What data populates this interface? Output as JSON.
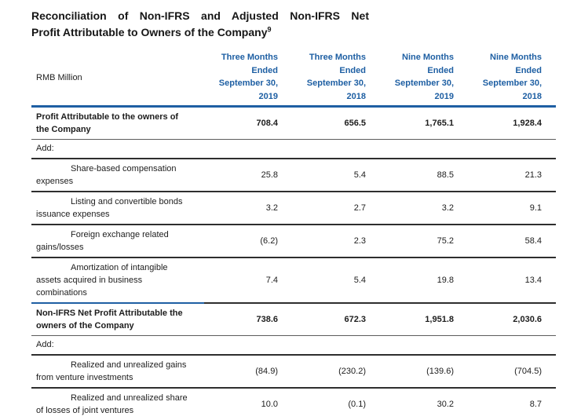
{
  "title": {
    "line1": "Reconciliation of Non-IFRS and Adjusted Non-IFRS Net",
    "line2": "Profit Attributable to Owners of the Company",
    "superscript": "9"
  },
  "table": {
    "unit_label": "RMB Million",
    "column_headers": [
      "Three Months\nEnded\nSeptember 30,\n2019",
      "Three Months\nEnded\nSeptember 30,\n2018",
      "Nine Months\nEnded\nSeptember 30,\n2019",
      "Nine Months\nEnded\nSeptember 30,\n2018"
    ],
    "rows": [
      {
        "label": "Profit Attributable to the owners of\nthe Company",
        "style": "bold",
        "values": [
          "708.4",
          "656.5",
          "1,765.1",
          "1,928.4"
        ]
      },
      {
        "label": "Add:",
        "style": "section",
        "values": []
      },
      {
        "label": "Share-based compensation\nexpenses",
        "style": "indent",
        "values": [
          "25.8",
          "5.4",
          "88.5",
          "21.3"
        ]
      },
      {
        "label": "Listing and convertible bonds\nissuance expenses",
        "style": "indent",
        "values": [
          "3.2",
          "2.7",
          "3.2",
          "9.1"
        ]
      },
      {
        "label": "Foreign exchange related\ngains/losses",
        "style": "indent",
        "values": [
          "(6.2)",
          "2.3",
          "75.2",
          "58.4"
        ]
      },
      {
        "label": "Amortization of intangible\nassets acquired in business\ncombinations",
        "style": "indent",
        "values": [
          "7.4",
          "5.4",
          "19.8",
          "13.4"
        ]
      },
      {
        "label": "Non-IFRS Net Profit Attributable the\nowners of the Company",
        "style": "bold",
        "values": [
          "738.6",
          "672.3",
          "1,951.8",
          "2,030.6"
        ]
      },
      {
        "label": "Add:",
        "style": "section",
        "values": []
      },
      {
        "label": "Realized and unrealized gains\nfrom venture investments",
        "style": "indent",
        "values": [
          "(84.9)",
          "(230.2)",
          "(139.6)",
          "(704.5)"
        ]
      },
      {
        "label": "Realized and unrealized share\nof losses of joint ventures",
        "style": "indent",
        "values": [
          "10.0",
          "(0.1)",
          "30.2",
          "8.7"
        ]
      }
    ]
  },
  "colors": {
    "accent_blue": "#1e5fa3",
    "line_dark": "#2e2e2e",
    "line_gray": "#5c5c5c",
    "text": "#1d1d1d"
  }
}
